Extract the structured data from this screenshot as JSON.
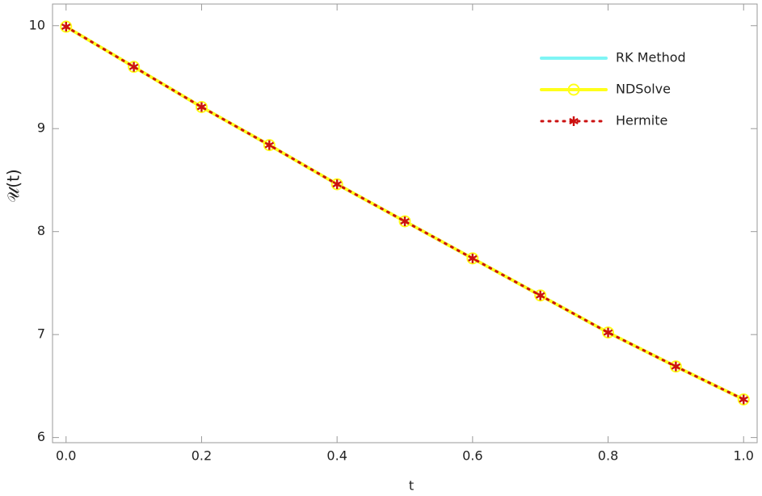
{
  "chart_data": {
    "type": "line",
    "x_label": "t",
    "y_label": "𝒰(t)",
    "x": [
      0,
      0.1,
      0.2,
      0.3,
      0.4,
      0.5,
      0.6,
      0.7,
      0.8,
      0.9,
      1.0
    ],
    "series": [
      {
        "name": "RK Method",
        "color": "#7ff5f5",
        "marker": "none",
        "dash": "solid",
        "values": [
          9.99,
          9.6,
          9.21,
          8.84,
          8.46,
          8.1,
          7.74,
          7.38,
          7.02,
          6.69,
          6.37
        ]
      },
      {
        "name": "NDSolve",
        "color": "#ffff1a",
        "marker": "circle",
        "dash": "solid",
        "values": [
          9.99,
          9.6,
          9.21,
          8.84,
          8.46,
          8.1,
          7.74,
          7.38,
          7.02,
          6.69,
          6.37
        ]
      },
      {
        "name": "Hermite",
        "color": "#cc1111",
        "marker": "star",
        "dash": "dotted",
        "values": [
          9.99,
          9.6,
          9.21,
          8.84,
          8.46,
          8.1,
          7.74,
          7.38,
          7.02,
          6.69,
          6.37
        ]
      }
    ],
    "xlim": [
      -0.02,
      1.02
    ],
    "xticks": [
      {
        "value": 0,
        "label": "0.0"
      },
      0.2,
      0.4,
      0.6,
      0.8,
      {
        "value": 1,
        "label": "1.0"
      }
    ],
    "ylim": [
      5.95,
      10.21
    ],
    "yticks": [
      6,
      7,
      8,
      9,
      10
    ],
    "legend_position": "top-right"
  }
}
